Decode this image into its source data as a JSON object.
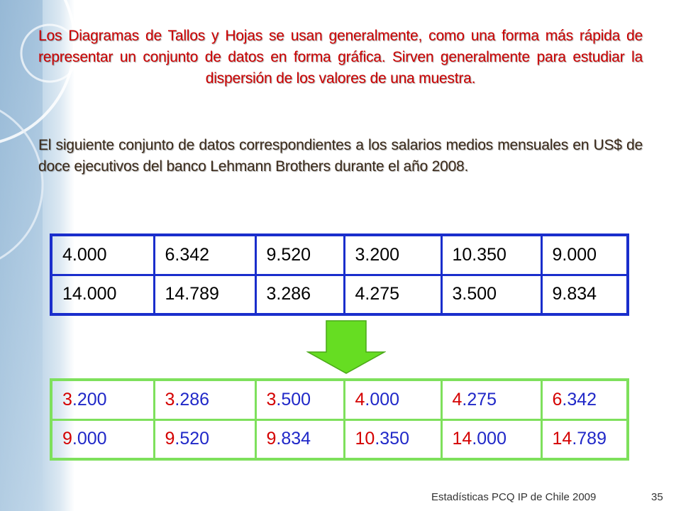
{
  "slide": {
    "paragraph_1": "Los Diagramas de Tallos y Hojas se usan generalmente, como una forma más rápida de representar un conjunto de datos en forma gráfica. Sirven generalmente para estudiar la dispersión de los valores de una muestra.",
    "paragraph_2": "El siguiente conjunto de datos correspondientes a los salarios medios mensuales en US$ de doce ejecutivos del banco Lehmann Brothers durante el año 2008.",
    "colors": {
      "paragraph_1": "#cc0000",
      "paragraph_2": "#3b2a1a",
      "raw_table_border": "#1a2ecc",
      "sorted_table_border": "#7ee05c",
      "stem": "#d40000",
      "leaf": "#2028c8",
      "arrow": "#66dd22"
    },
    "icons": [
      "down-arrow-icon"
    ]
  },
  "raw_table": {
    "rows": [
      [
        "4.000",
        "6.342",
        "9.520",
        "3.200",
        "10.350",
        "9.000"
      ],
      [
        "14.000",
        "14.789",
        "3.286",
        "4.275",
        "3.500",
        "9.834"
      ]
    ]
  },
  "sorted_table": {
    "rows": [
      [
        {
          "stem": "3",
          "leaf": ".200"
        },
        {
          "stem": "3",
          "leaf": ".286"
        },
        {
          "stem": "3",
          "leaf": ".500"
        },
        {
          "stem": "4",
          "leaf": ".000"
        },
        {
          "stem": "4",
          "leaf": ".275"
        },
        {
          "stem": "6",
          "leaf": ".342"
        }
      ],
      [
        {
          "stem": "9",
          "leaf": ".000"
        },
        {
          "stem": "9",
          "leaf": ".520"
        },
        {
          "stem": "9",
          "leaf": ".834"
        },
        {
          "stem": "10",
          "leaf": ".350"
        },
        {
          "stem": "14",
          "leaf": ".000"
        },
        {
          "stem": "14",
          "leaf": ".789"
        }
      ]
    ]
  },
  "footer": {
    "text": "Estadísticas PCQ IP de Chile 2009",
    "page_number": "35"
  }
}
